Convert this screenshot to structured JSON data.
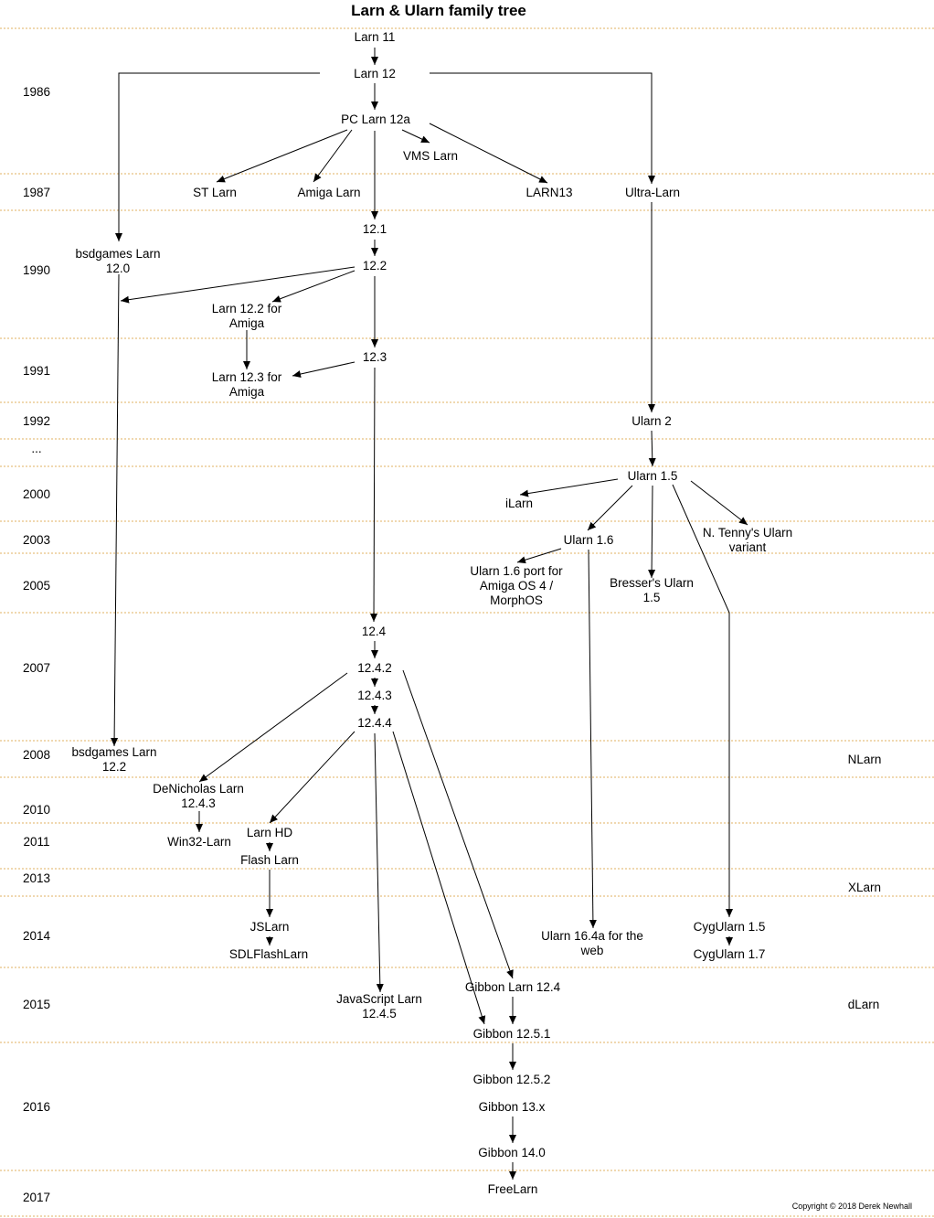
{
  "title": "Larn & Ularn family tree",
  "copyright": "Copyright © 2018 Derek Newhall",
  "colors": {
    "separator": "#e0b060",
    "line": "#000000"
  },
  "years": [
    "1986",
    "1987",
    "1990",
    "1991",
    "1992",
    "...",
    "2000",
    "2003",
    "2005",
    "2007",
    "2008",
    "2010",
    "2011",
    "2013",
    "2014",
    "2015",
    "2016",
    "2017"
  ],
  "nodes": {
    "larn11": "Larn 11",
    "larn12": "Larn 12",
    "pclarn": "PC Larn 12a",
    "vms": "VMS Larn",
    "st": "ST Larn",
    "amiga": "Amiga Larn",
    "larn13": "LARN13",
    "ultra": "Ultra-Larn",
    "v121": "12.1",
    "v122": "12.2",
    "bsd120": "bsdgames Larn\n12.0",
    "amiga122": "Larn 12.2 for\nAmiga",
    "v123": "12.3",
    "amiga123": "Larn 12.3 for\nAmiga",
    "ularn2": "Ularn 2",
    "ularn15": "Ularn 1.5",
    "ilarn": "iLarn",
    "tenny": "N. Tenny's Ularn\nvariant",
    "ularn16": "Ularn 1.6",
    "amigaos4": "Ularn 1.6 port for\nAmiga OS 4 /\nMorphOS",
    "bresser": "Bresser's Ularn\n1.5",
    "v124": "12.4",
    "v1242": "12.4.2",
    "v1243": "12.4.3",
    "v1244": "12.4.4",
    "bsd122": "bsdgames Larn\n12.2",
    "nlarn": "NLarn",
    "denicholas": "DeNicholas Larn\n12.4.3",
    "win32": "Win32-Larn",
    "larnhd": "Larn HD",
    "flash": "Flash Larn",
    "xlarn": "XLarn",
    "jslarn": "JSLarn",
    "sdlflash": "SDLFlashLarn",
    "ularnweb": "Ularn 16.4a for the\nweb",
    "cyg15": "CygUlarn 1.5",
    "cyg17": "CygUlarn 1.7",
    "jslarn1245": "JavaScript Larn\n12.4.5",
    "gibbon124": "Gibbon Larn 12.4",
    "gibbon1251": "Gibbon 12.5.1",
    "dlarn": "dLarn",
    "gibbon1252": "Gibbon 12.5.2",
    "gibbon13": "Gibbon 13.x",
    "gibbon14": "Gibbon 14.0",
    "freelarn": "FreeLarn"
  },
  "edges": [
    [
      "larn11",
      "larn12"
    ],
    [
      "larn12",
      "pclarn"
    ],
    [
      "larn12",
      "bsd120"
    ],
    [
      "larn12",
      "ultra"
    ],
    [
      "pclarn",
      "st"
    ],
    [
      "pclarn",
      "amiga"
    ],
    [
      "pclarn",
      "vms"
    ],
    [
      "pclarn",
      "larn13"
    ],
    [
      "pclarn",
      "v121"
    ],
    [
      "v121",
      "v122"
    ],
    [
      "v122",
      "bsd120"
    ],
    [
      "v122",
      "amiga122"
    ],
    [
      "v122",
      "v123"
    ],
    [
      "amiga122",
      "amiga123"
    ],
    [
      "v123",
      "amiga123"
    ],
    [
      "v123",
      "v124"
    ],
    [
      "ultra",
      "ularn2"
    ],
    [
      "ularn2",
      "ularn15"
    ],
    [
      "ularn15",
      "ilarn"
    ],
    [
      "ularn15",
      "ularn16"
    ],
    [
      "ularn15",
      "bresser"
    ],
    [
      "ularn15",
      "tenny"
    ],
    [
      "ularn15",
      "cyg15"
    ],
    [
      "ularn16",
      "amigaos4"
    ],
    [
      "ularn16",
      "ularnweb"
    ],
    [
      "bsd120",
      "bsd122"
    ],
    [
      "v124",
      "v1242"
    ],
    [
      "v1242",
      "v1243"
    ],
    [
      "v1243",
      "v1244"
    ],
    [
      "v1242",
      "denicholas"
    ],
    [
      "v1242",
      "gibbon124"
    ],
    [
      "v1244",
      "larnhd"
    ],
    [
      "v1244",
      "jslarn1245"
    ],
    [
      "v1244",
      "gibbon1251"
    ],
    [
      "denicholas",
      "win32"
    ],
    [
      "larnhd",
      "flash"
    ],
    [
      "flash",
      "jslarn"
    ],
    [
      "jslarn",
      "sdlflash"
    ],
    [
      "cyg15",
      "cyg17"
    ],
    [
      "gibbon124",
      "gibbon1251"
    ],
    [
      "gibbon1251",
      "gibbon1252"
    ],
    [
      "gibbon13",
      "gibbon14"
    ],
    [
      "gibbon14",
      "freelarn"
    ]
  ]
}
